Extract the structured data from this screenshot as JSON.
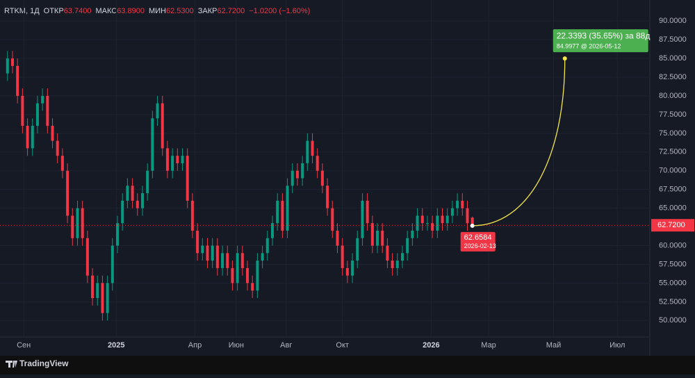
{
  "header": {
    "symbol": "RTKM, 1Д",
    "fields": [
      {
        "label": "ОТКР",
        "value": "63.7400"
      },
      {
        "label": "МАКС",
        "value": "63.8900"
      },
      {
        "label": "МИН",
        "value": "62.5300"
      },
      {
        "label": "ЗАКР",
        "value": "62.7200"
      }
    ],
    "change": "−1.0200 (−1.60%)"
  },
  "chart_data": {
    "type": "candlestick",
    "up_color": "#089981",
    "down_color": "#f23645",
    "x": [
      6,
      10,
      14,
      18,
      22,
      26,
      30,
      34,
      38,
      42,
      46,
      50,
      54,
      58,
      62,
      66,
      70,
      74,
      78,
      82,
      86,
      90,
      94,
      98,
      102,
      106,
      110,
      114,
      118,
      122,
      126,
      130,
      134,
      138,
      142,
      146,
      150,
      154,
      158,
      162,
      166,
      170,
      174,
      178,
      182,
      186,
      190,
      194,
      198,
      202,
      206,
      210,
      214,
      218,
      222,
      226,
      230,
      234,
      238,
      242,
      246,
      250,
      254,
      258,
      262,
      266,
      270,
      274,
      278,
      282,
      286,
      290,
      294,
      298,
      302,
      306,
      310,
      314,
      318,
      322,
      326,
      330,
      334,
      338,
      342,
      346,
      350,
      354,
      358,
      362,
      366,
      370,
      374,
      378
    ],
    "open": [
      83,
      85,
      84,
      80,
      76,
      73,
      76,
      79,
      80,
      76,
      74,
      72,
      70,
      64,
      61,
      65,
      61,
      56,
      53,
      55,
      51,
      55,
      60,
      63,
      66,
      68,
      66,
      65,
      67,
      70,
      77,
      79,
      73,
      70,
      72,
      71,
      72,
      66,
      62,
      59,
      60,
      58,
      60,
      57,
      59,
      57,
      55,
      59,
      57,
      55,
      54,
      58,
      59,
      61,
      63,
      66,
      62,
      68,
      70,
      69,
      71,
      74,
      72,
      70,
      68,
      65,
      62,
      60,
      57,
      56,
      58,
      61,
      66,
      63,
      60,
      62,
      60,
      58,
      57,
      58,
      59,
      61,
      62,
      64,
      63,
      63,
      62,
      64,
      63,
      64,
      65,
      66,
      65,
      63.74
    ],
    "high": [
      86,
      86,
      85,
      81,
      77,
      77,
      80,
      81,
      81,
      77,
      75,
      73,
      71,
      65,
      66,
      66,
      62,
      57,
      56,
      56,
      56,
      61,
      64,
      67,
      69,
      69,
      67,
      68,
      71,
      78,
      80,
      80,
      74,
      73,
      73,
      73,
      73,
      67,
      63,
      61,
      61,
      61,
      61,
      60,
      60,
      58,
      60,
      60,
      58,
      56,
      59,
      60,
      62,
      64,
      67,
      67,
      69,
      71,
      71,
      72,
      75,
      75,
      73,
      71,
      69,
      66,
      63,
      61,
      58,
      59,
      62,
      67,
      67,
      64,
      63,
      63,
      61,
      59,
      59,
      60,
      62,
      63,
      65,
      65,
      64,
      64,
      65,
      65,
      65,
      66,
      67,
      67,
      66,
      63.89
    ],
    "low": [
      82,
      83,
      79,
      75,
      72,
      72,
      75,
      78,
      75,
      73,
      71,
      69,
      63,
      60,
      60,
      60,
      55,
      52,
      52,
      50,
      50,
      54,
      59,
      62,
      65,
      65,
      64,
      64,
      66,
      69,
      76,
      72,
      69,
      69,
      70,
      70,
      65,
      61,
      58,
      58,
      57,
      57,
      56,
      56,
      56,
      54,
      54,
      56,
      54,
      53,
      53,
      57,
      58,
      60,
      62,
      61,
      61,
      67,
      68,
      68,
      70,
      71,
      69,
      67,
      64,
      61,
      59,
      56,
      55,
      55,
      57,
      60,
      62,
      59,
      59,
      59,
      57,
      56,
      56,
      57,
      58,
      60,
      61,
      62,
      62,
      61,
      61,
      62,
      62,
      63,
      64,
      64,
      62,
      62.53
    ],
    "close": [
      85,
      84,
      80,
      76,
      73,
      76,
      79,
      80,
      76,
      74,
      72,
      70,
      64,
      61,
      65,
      61,
      56,
      53,
      55,
      51,
      55,
      60,
      63,
      66,
      68,
      66,
      65,
      67,
      70,
      77,
      79,
      73,
      70,
      72,
      71,
      72,
      66,
      62,
      59,
      60,
      58,
      60,
      57,
      59,
      57,
      55,
      59,
      57,
      55,
      54,
      58,
      59,
      61,
      63,
      66,
      62,
      68,
      70,
      69,
      71,
      74,
      72,
      70,
      68,
      65,
      62,
      60,
      57,
      56,
      58,
      61,
      66,
      63,
      60,
      62,
      60,
      58,
      57,
      58,
      59,
      61,
      62,
      64,
      63,
      63,
      62,
      64,
      63,
      64,
      65,
      66,
      65,
      63,
      62.72
    ],
    "xlim": [
      0,
      520
    ],
    "xticks": [
      {
        "value": 19,
        "label": "Сен"
      },
      {
        "value": 93,
        "label": "2025"
      },
      {
        "value": 156,
        "label": "Апр"
      },
      {
        "value": 189,
        "label": "Июн"
      },
      {
        "value": 229,
        "label": "Авг"
      },
      {
        "value": 274,
        "label": "Окт"
      },
      {
        "value": 345,
        "label": "2026"
      },
      {
        "value": 391,
        "label": "Мар"
      },
      {
        "value": 443,
        "label": "Май"
      },
      {
        "value": 494,
        "label": "Июл"
      }
    ],
    "ylim": [
      47.8,
      92.8
    ],
    "yticks": [
      {
        "value": 50,
        "label": "50.0000"
      },
      {
        "value": 52.5,
        "label": "52.5000"
      },
      {
        "value": 55,
        "label": "55.0000"
      },
      {
        "value": 57.5,
        "label": "57.5000"
      },
      {
        "value": 60,
        "label": "60.0000"
      },
      {
        "value": 62.5,
        "label": "62.5000"
      },
      {
        "value": 65,
        "label": "65.0000"
      },
      {
        "value": 67.5,
        "label": "67.5000"
      },
      {
        "value": 70,
        "label": "70.0000"
      },
      {
        "value": 72.5,
        "label": "72.5000"
      },
      {
        "value": 75,
        "label": "75.0000"
      },
      {
        "value": 77.5,
        "label": "77.5000"
      },
      {
        "value": 80,
        "label": "80.0000"
      },
      {
        "value": 82.5,
        "label": "82.5000"
      },
      {
        "value": 85,
        "label": "85.0000"
      },
      {
        "value": 87.5,
        "label": "87.5000"
      },
      {
        "value": 90,
        "label": "90.0000"
      }
    ],
    "last_price": {
      "value": 62.72,
      "label": "62.7200"
    },
    "projection": {
      "color": "#f5e74a",
      "start": {
        "x": 378,
        "value": 62.6584,
        "date": "2026-02-13"
      },
      "end": {
        "x": 452,
        "value": 84.9977,
        "label": "84.9977 @ 2026-05-12"
      },
      "label": "22.3393 (35.65%) за 88д"
    }
  },
  "brand": "TradingView"
}
